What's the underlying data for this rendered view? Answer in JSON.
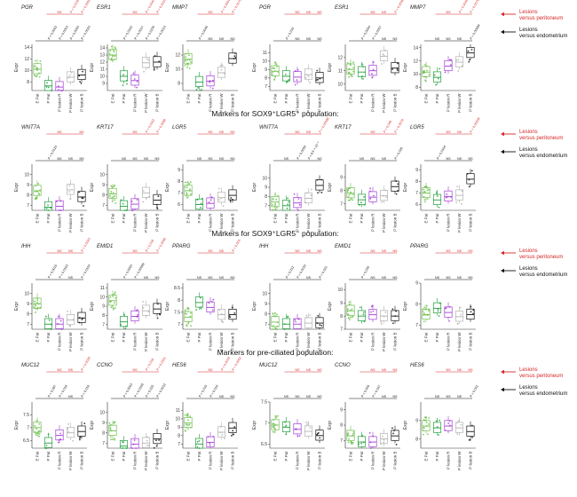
{
  "colors": {
    "E Pat": "#6cc04a",
    "P Pat": "#1f9e3c",
    "P lesion R": "#a23bd6",
    "P lesion W": "#b3b3b3",
    "P lesion B": "#111111",
    "peritoneum_line": "#d62728",
    "endometrium_line": "#111111"
  },
  "legend": {
    "peritoneum": [
      "Lesions",
      "versus peritoneum"
    ],
    "endometrium": [
      "Lesions",
      "versus endometrium"
    ]
  },
  "sections": [
    "Markers for SOX9⁺LGR5⁺ population:",
    "Markers for SOX9⁺LGR5⁻ population:",
    "Markers for pre-ciliated population:"
  ],
  "chart_data": [
    {
      "type": "box",
      "gene": "PGR",
      "ylabel": "Expr",
      "categories": [
        "E Pat",
        "P Pat",
        "P lesion R",
        "P lesion W",
        "P lesion B"
      ],
      "ylim": [
        6.5,
        14.5
      ],
      "yticks": [
        8,
        10,
        12,
        14
      ],
      "medians": [
        10.2,
        7.3,
        7.1,
        8.8,
        9.2
      ],
      "red_labels": [
        "NS",
        "P = 0.0135",
        "P = 0.0009"
      ],
      "black_labels": [
        "P = 0.0002",
        "P = 0.0003",
        "P = 0.0053",
        "P = 0.0023"
      ]
    },
    {
      "type": "box",
      "gene": "ESR1",
      "ylabel": "Expr",
      "categories": [
        "E Pat",
        "P Pat",
        "P lesion R",
        "P lesion W",
        "P lesion B"
      ],
      "ylim": [
        8,
        14.5
      ],
      "yticks": [
        9,
        10,
        11,
        12,
        13,
        14
      ],
      "medians": [
        13.0,
        10.0,
        9.4,
        11.9,
        12.0
      ],
      "red_labels": [
        "NS",
        "P = 0.0043",
        "P = 0.0010"
      ],
      "black_labels": [
        "P = 0.0102",
        "P = 0.0017",
        "P = 0.0230",
        "P = 0.0013"
      ]
    },
    {
      "type": "box",
      "gene": "MMP7",
      "ylabel": "Expr",
      "categories": [
        "E Pat",
        "P Pat",
        "P lesion R",
        "P lesion W",
        "P lesion B"
      ],
      "ylim": [
        7,
        13.5
      ],
      "yticks": [
        8,
        10,
        12
      ],
      "medians": [
        11.4,
        8.2,
        8.3,
        9.5,
        11.5
      ],
      "red_labels": [
        "NS",
        "P = 0.0004",
        "P = 0.0175"
      ],
      "black_labels": [
        "P = 0.0040",
        "NS",
        "NS",
        "NS"
      ]
    },
    {
      "type": "box",
      "gene": "PGR",
      "ylabel": "Expr",
      "categories": [
        "E Pat",
        "P Pat",
        "P lesion R",
        "P lesion W",
        "P lesion B"
      ],
      "ylim": [
        6.5,
        12
      ],
      "yticks": [
        7,
        8,
        9,
        10,
        11
      ],
      "medians": [
        8.8,
        8.2,
        8.1,
        8.4,
        8.0
      ],
      "red_labels": [
        "NS",
        "NS",
        "NS"
      ],
      "black_labels": [
        "P = 0.015",
        "NS",
        "NS",
        "NS"
      ]
    },
    {
      "type": "box",
      "gene": "ESR1",
      "ylabel": "Expr",
      "categories": [
        "E Pat",
        "P Pat",
        "P lesion R",
        "P lesion W",
        "P lesion B"
      ],
      "ylim": [
        9.5,
        13
      ],
      "yticks": [
        10,
        11,
        12
      ],
      "medians": [
        11.1,
        10.9,
        11.0,
        12.1,
        11.2
      ],
      "red_labels": [
        "NS",
        "NS",
        "P = 0.0048"
      ],
      "black_labels": [
        "P = 0.0054",
        "P = 0.0007",
        "NS",
        "NS"
      ]
    },
    {
      "type": "box",
      "gene": "MMP7",
      "ylabel": "Expr",
      "categories": [
        "E Pat",
        "P Pat",
        "P lesion R",
        "P lesion W",
        "P lesion B"
      ],
      "ylim": [
        7.5,
        14.5
      ],
      "yticks": [
        8,
        10,
        12,
        14
      ],
      "medians": [
        10.3,
        9.5,
        11.2,
        11.8,
        13.2
      ],
      "red_labels": [
        "NS",
        "P = 0.0049",
        "P = 0.0076"
      ],
      "black_labels": [
        "NS",
        "NS",
        "NS",
        "P = 0.00084"
      ]
    },
    {
      "type": "box",
      "gene": "WNT7A",
      "ylabel": "Expr",
      "categories": [
        "E Pat",
        "P Pat",
        "P lesion R",
        "P lesion W",
        "P lesion B"
      ],
      "ylim": [
        6.5,
        11
      ],
      "yticks": [
        7,
        8,
        9,
        10
      ],
      "medians": [
        8.4,
        6.8,
        6.9,
        8.5,
        7.8
      ],
      "red_labels": [
        "NS",
        "",
        "NS"
      ],
      "black_labels": [
        "P = 0.0120",
        "NS",
        "NS",
        "NS"
      ]
    },
    {
      "type": "box",
      "gene": "KRT17",
      "ylabel": "Expr",
      "categories": [
        "E Pat",
        "P Pat",
        "P lesion R",
        "P lesion W",
        "P lesion B"
      ],
      "ylim": [
        6.5,
        11
      ],
      "yticks": [
        7,
        8,
        9,
        10
      ],
      "medians": [
        8.1,
        6.9,
        7.1,
        8.2,
        7.5
      ],
      "red_labels": [
        "NS",
        "P = 0.0102",
        "P = 0.0098"
      ],
      "black_labels": [
        "NS",
        "NS",
        "NS",
        "NS"
      ]
    },
    {
      "type": "box",
      "gene": "LGR5",
      "ylabel": "Expr",
      "categories": [
        "E Pat",
        "P Pat",
        "P lesion R",
        "P lesion W",
        "P lesion B"
      ],
      "ylim": [
        5.5,
        9.5
      ],
      "yticks": [
        6,
        7,
        8,
        9
      ],
      "medians": [
        7.2,
        6.0,
        6.1,
        6.6,
        6.8
      ],
      "red_labels": [
        "NS",
        "NS",
        "NS"
      ],
      "black_labels": [
        "NS",
        "NS",
        "NS",
        "NS"
      ]
    },
    {
      "type": "box",
      "gene": "WNT7A",
      "ylabel": "Expr",
      "categories": [
        "E Pat",
        "P Pat",
        "P lesion R",
        "P lesion W",
        "P lesion B"
      ],
      "ylim": [
        6.5,
        11.5
      ],
      "yticks": [
        7,
        8,
        9,
        10
      ],
      "medians": [
        7.4,
        7.0,
        7.3,
        7.8,
        9.2
      ],
      "red_labels": [
        "NS",
        "NS",
        "P = 0.00086"
      ],
      "black_labels": [
        "NS",
        "P = 0.0009",
        "P = 8.5 × 10⁻⁶",
        "NS"
      ]
    },
    {
      "type": "box",
      "gene": "KRT17",
      "ylabel": "Expr",
      "categories": [
        "E Pat",
        "P Pat",
        "P lesion R",
        "P lesion W",
        "P lesion B"
      ],
      "ylim": [
        6.5,
        10
      ],
      "yticks": [
        7,
        8,
        9
      ],
      "medians": [
        7.8,
        7.3,
        7.5,
        7.6,
        8.3
      ],
      "red_labels": [
        "NS",
        "P = 0.046",
        "P = 0.0076"
      ],
      "black_labels": [
        "NS",
        "NS",
        "NS",
        "P = 0.020"
      ]
    },
    {
      "type": "box",
      "gene": "LGR5",
      "ylabel": "Expr",
      "categories": [
        "E Pat",
        "P Pat",
        "P lesion R",
        "P lesion W",
        "P lesion B"
      ],
      "ylim": [
        5.5,
        9.5
      ],
      "yticks": [
        6,
        7,
        8,
        9
      ],
      "medians": [
        7.0,
        6.4,
        6.7,
        6.8,
        8.2
      ],
      "red_labels": [
        "NS",
        "NS",
        "P = 0.00056"
      ],
      "black_labels": [
        "P = 0.0104",
        "NS",
        "NS",
        "NS"
      ]
    },
    {
      "type": "box",
      "gene": "IHH",
      "ylabel": "Expr",
      "categories": [
        "E Pat",
        "P Pat",
        "P lesion R",
        "P lesion W",
        "P lesion B"
      ],
      "ylim": [
        6.5,
        11
      ],
      "yticks": [
        7,
        8,
        9,
        10
      ],
      "medians": [
        9.0,
        7.0,
        7.0,
        7.4,
        7.6
      ],
      "red_labels": [
        "NS",
        "NS",
        "P = 0.0043"
      ],
      "black_labels": [
        "P = 0.0015",
        "P = 0.0103",
        "NS",
        "P = 0.0104"
      ]
    },
    {
      "type": "box",
      "gene": "EMID1",
      "ylabel": "Expr",
      "categories": [
        "E Pat",
        "P Pat",
        "P lesion R",
        "P lesion W",
        "P lesion B"
      ],
      "ylim": [
        6.5,
        11.5
      ],
      "yticks": [
        7,
        8,
        9,
        10,
        11
      ],
      "medians": [
        9.6,
        7.3,
        7.9,
        8.5,
        8.7
      ],
      "red_labels": [
        "NS",
        "P = 0.016",
        "P = 0.0058"
      ],
      "black_labels": [
        "P = 0.0003",
        "P = 0.00089",
        "NS",
        "NS"
      ]
    },
    {
      "type": "box",
      "gene": "PPARG",
      "ylabel": "Expr",
      "categories": [
        "E Pat",
        "P Pat",
        "P lesion R",
        "P lesion W",
        "P lesion B"
      ],
      "ylim": [
        6.8,
        8.7
      ],
      "yticks": [
        7.0,
        7.5,
        8.0,
        8.5
      ],
      "medians": [
        7.3,
        7.9,
        7.7,
        7.4,
        7.4
      ],
      "red_labels": [
        "NS",
        "NS",
        "P = 0.003"
      ],
      "black_labels": [
        "NS",
        "NS",
        "NS",
        "NS"
      ]
    },
    {
      "type": "box",
      "gene": "IHH",
      "ylabel": "Expr",
      "categories": [
        "E Pat",
        "P Pat",
        "P lesion R",
        "P lesion W",
        "P lesion B"
      ],
      "ylim": [
        6.5,
        11
      ],
      "yticks": [
        7,
        8,
        9,
        10
      ],
      "medians": [
        7.2,
        7.0,
        7.0,
        7.1,
        7.1
      ],
      "red_labels": [
        "NS",
        "NS",
        "NS"
      ],
      "black_labels": [
        "P = 0.012",
        "P = 0.0015",
        "NS",
        "P = 0.021"
      ]
    },
    {
      "type": "box",
      "gene": "EMID1",
      "ylabel": "Expr",
      "categories": [
        "E Pat",
        "P Pat",
        "P lesion R",
        "P lesion W",
        "P lesion B"
      ],
      "ylim": [
        7,
        10.5
      ],
      "yticks": [
        7,
        8,
        9,
        10
      ],
      "medians": [
        8.4,
        8.0,
        8.1,
        8.0,
        8.0
      ],
      "red_labels": [
        "NS",
        "NS",
        "NS"
      ],
      "black_labels": [
        "P = 0.030",
        "NS",
        "NS",
        "NS"
      ]
    },
    {
      "type": "box",
      "gene": "PPARG",
      "ylabel": "Expr",
      "categories": [
        "E Pat",
        "P Pat",
        "P lesion R",
        "P lesion W",
        "P lesion B"
      ],
      "ylim": [
        6.8,
        9
      ],
      "yticks": [
        7,
        8,
        9
      ],
      "medians": [
        7.5,
        7.8,
        7.6,
        7.4,
        7.5
      ],
      "red_labels": [
        "NS",
        "NS",
        "NS"
      ],
      "black_labels": [
        "NS",
        "NS",
        "NS",
        "NS"
      ]
    },
    {
      "type": "box",
      "gene": "MUC12",
      "ylabel": "Expr",
      "categories": [
        "E Pat",
        "P Pat",
        "P lesion R",
        "P lesion W",
        "P lesion B"
      ],
      "ylim": [
        6.2,
        8.0
      ],
      "yticks": [
        6.5,
        7.0,
        7.5
      ],
      "medians": [
        7.0,
        6.4,
        6.7,
        6.8,
        6.85
      ],
      "red_labels": [
        "NS",
        "NS",
        "P = 0.0026"
      ],
      "black_labels": [
        "P = 0.087",
        "P = 0.016",
        "NS",
        "P = 0.019"
      ]
    },
    {
      "type": "box",
      "gene": "CCNO",
      "ylabel": "Expr",
      "categories": [
        "E Pat",
        "P Pat",
        "P lesion R",
        "P lesion W",
        "P lesion B"
      ],
      "ylim": [
        6.5,
        11
      ],
      "yticks": [
        7,
        8,
        9,
        10
      ],
      "medians": [
        8.2,
        6.7,
        6.9,
        7.0,
        7.4
      ],
      "red_labels": [
        "NS",
        "P = 0.016",
        "P = 0.0101"
      ],
      "black_labels": [
        "P = 0.0003",
        "P = 0.0109",
        "P = 0.020",
        "P = 0.0012"
      ]
    },
    {
      "type": "box",
      "gene": "HES6",
      "ylabel": "Expr",
      "categories": [
        "E Pat",
        "P Pat",
        "P lesion R",
        "P lesion W",
        "P lesion B"
      ],
      "ylim": [
        6.5,
        12
      ],
      "yticks": [
        7,
        8,
        9,
        10,
        11
      ],
      "medians": [
        9.5,
        7.0,
        7.2,
        8.4,
        8.9
      ],
      "red_labels": [
        "NS",
        "P = 0.0016",
        "P = 0.0002"
      ],
      "black_labels": [
        "P = 0.015",
        "P = 0.015",
        "NS",
        "NS"
      ]
    },
    {
      "type": "box",
      "gene": "MUC12",
      "ylabel": "Expr",
      "categories": [
        "E Pat",
        "P Pat",
        "P lesion R",
        "P lesion W",
        "P lesion B"
      ],
      "ylim": [
        6.4,
        7.5
      ],
      "yticks": [
        6.5,
        7.0,
        7.5
      ],
      "medians": [
        6.95,
        6.9,
        6.85,
        6.8,
        6.7
      ],
      "red_labels": [
        "NS",
        "NS",
        "NS"
      ],
      "black_labels": [
        "NS",
        "NS",
        "NS",
        "NS"
      ]
    },
    {
      "type": "box",
      "gene": "CCNO",
      "ylabel": "Expr",
      "categories": [
        "E Pat",
        "P Pat",
        "P lesion R",
        "P lesion W",
        "P lesion B"
      ],
      "ylim": [
        6.5,
        9.5
      ],
      "yticks": [
        7,
        8,
        9
      ],
      "medians": [
        7.3,
        6.9,
        6.9,
        7.1,
        7.3
      ],
      "red_labels": [
        "NS",
        "NS",
        "NS"
      ],
      "black_labels": [
        "P = 0.009",
        "P = 0.047",
        "NS",
        "NS"
      ]
    },
    {
      "type": "box",
      "gene": "HES6",
      "ylabel": "Expr",
      "categories": [
        "E Pat",
        "P Pat",
        "P lesion R",
        "P lesion W",
        "P lesion B"
      ],
      "ylim": [
        7.5,
        10
      ],
      "yticks": [
        8,
        9
      ],
      "medians": [
        8.7,
        8.6,
        8.7,
        8.6,
        8.4
      ],
      "red_labels": [
        "NS",
        "NS",
        "NS"
      ],
      "black_labels": [
        "NS",
        "NS",
        "NS",
        "P = 0.041"
      ]
    }
  ]
}
